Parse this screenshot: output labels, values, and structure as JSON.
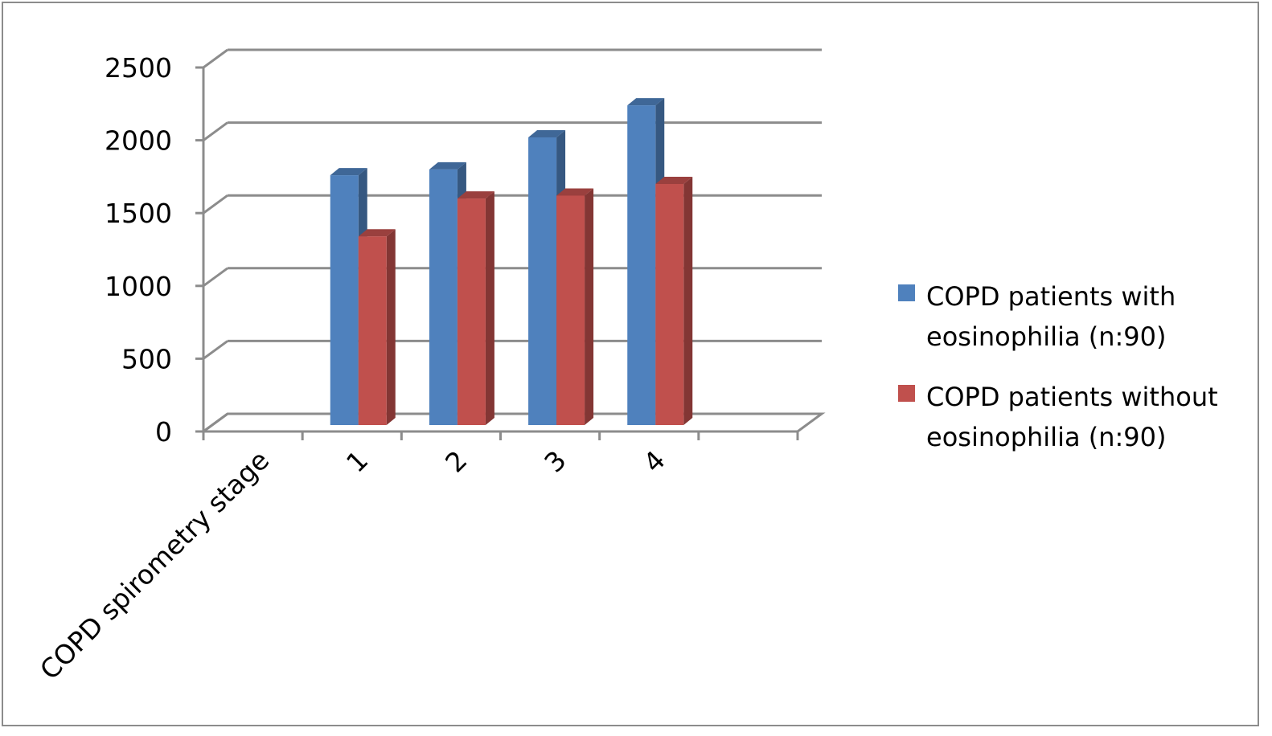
{
  "chart_data": {
    "type": "bar",
    "style": "3d-clustered-column",
    "title": "",
    "xlabel": "",
    "ylabel": "",
    "categories": [
      "COPD spirometry stage",
      "1",
      "2",
      "3",
      "4",
      ""
    ],
    "series": [
      {
        "name": "COPD patients with eosinophilia (n:90)",
        "legend_lines": [
          "COPD patients with",
          "eosinophilia (n:90)"
        ],
        "color": "#4f81bd",
        "values": [
          null,
          1760,
          1800,
          2020,
          2240,
          null
        ]
      },
      {
        "name": "COPD patients without eosinophilia (n:90)",
        "legend_lines": [
          "COPD patients without",
          "eosinophilia (n:90)"
        ],
        "color": "#c0504d",
        "values": [
          null,
          1340,
          1600,
          1620,
          1700,
          null
        ]
      }
    ],
    "ylim": [
      0,
      2500
    ],
    "yticks": [
      0,
      500,
      1000,
      1500,
      2000,
      2500
    ],
    "grid": true,
    "legend": "right",
    "frame_color": "#8c8c8c",
    "grid_color": "#8c8c8c"
  }
}
